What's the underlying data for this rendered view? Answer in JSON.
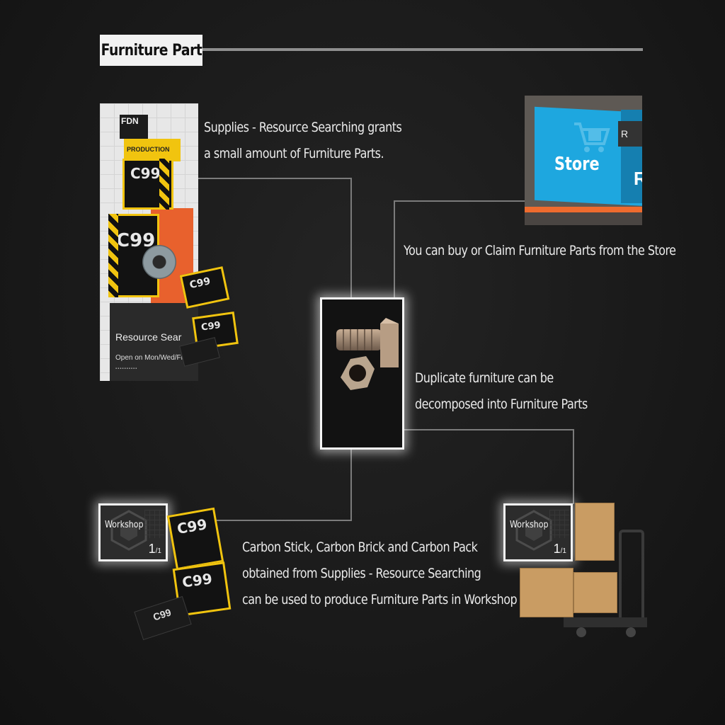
{
  "header": {
    "title": "Furniture Part"
  },
  "descriptions": {
    "resource_searching": [
      "Supplies - Resource Searching grants",
      "a small amount of Furniture Parts."
    ],
    "store": [
      "You can buy or Claim Furniture Parts from the Store"
    ],
    "decompose": [
      "Duplicate furniture can be",
      "decomposed into Furniture Parts"
    ],
    "workshop": [
      "Carbon Stick, Carbon Brick and Carbon Pack",
      "obtained from Supplies - Resource Searching",
      "can be used to produce Furniture Parts in Workshop"
    ]
  },
  "resource_search_art": {
    "fdn_label": "FDN",
    "production_label": "PRODUCTION",
    "c99_label": "C99",
    "footer_title": "Resource Sear",
    "footer_subtitle": "Open on Mon/Wed/Fri/Sat/"
  },
  "store_art": {
    "label": "Store",
    "badge_letter": "R",
    "cut_letter": "R"
  },
  "workshop_cards": [
    {
      "label": "Workshop",
      "count": "1",
      "total": "/1"
    },
    {
      "label": "Workshop",
      "count": "1",
      "total": "/1"
    }
  ],
  "colors": {
    "background": "#1a1a1a",
    "hazard_yellow": "#f1c40f",
    "store_blue": "#1ea7df",
    "accent_orange": "#ef6b2e",
    "cardboard": "#c99c63"
  },
  "icons": {
    "center": "bolt-and-nut-icon",
    "workshop": "workshop-hex-icon",
    "store": "shopping-cart-icon"
  }
}
